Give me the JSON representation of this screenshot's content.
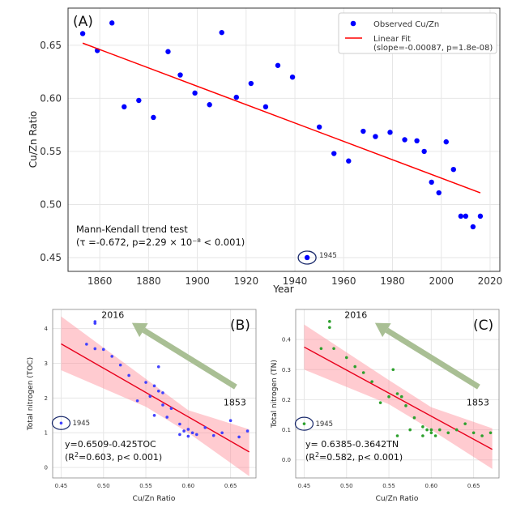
{
  "chart_data": [
    {
      "id": "A",
      "type": "scatter",
      "panel_label": "(A)",
      "xlabel": "Year",
      "ylabel": "Cu/Zn Ratio",
      "xlim": [
        1847,
        2024
      ],
      "ylim": [
        0.437,
        0.685
      ],
      "xticks": [
        "1860",
        "1880",
        "1900",
        "1920",
        "1940",
        "1960",
        "1980",
        "2000",
        "2020"
      ],
      "yticks": [
        "0.45",
        "0.50",
        "0.55",
        "0.60",
        "0.65"
      ],
      "grid": true,
      "legend": {
        "position": "top-right",
        "scatter": "Observed Cu/Zn",
        "line1": "Linear Fit",
        "line2": "(slope=-0.00087, p=1.8e-08)"
      },
      "colors": {
        "points": "#0000ff",
        "fit": "#ff0000"
      },
      "points": {
        "x": [
          1853,
          1859,
          1865,
          1870,
          1876,
          1882,
          1888,
          1893,
          1899,
          1905,
          1910,
          1916,
          1922,
          1928,
          1933,
          1939,
          1945,
          1950,
          1956,
          1962,
          1968,
          1973,
          1979,
          1985,
          1990,
          1993,
          1996,
          1999,
          2002,
          2005,
          2008,
          2010,
          2013,
          2016
        ],
        "y": [
          0.661,
          0.645,
          0.671,
          0.592,
          0.598,
          0.582,
          0.644,
          0.622,
          0.605,
          0.594,
          0.662,
          0.601,
          0.614,
          0.592,
          0.631,
          0.62,
          0.45,
          0.573,
          0.548,
          0.541,
          0.569,
          0.564,
          0.568,
          0.561,
          0.56,
          0.55,
          0.521,
          0.511,
          0.559,
          0.533,
          0.489,
          0.489,
          0.479,
          0.489
        ]
      },
      "fit": {
        "x": [
          1853,
          2016
        ],
        "y": [
          0.652,
          0.511
        ]
      },
      "outlier": {
        "label": "1945",
        "x": 1945,
        "y": 0.45
      },
      "stats_title": "Mann-Kendall trend test",
      "stats_line": "(τ =-0.672, p=2.29 × 10⁻⁸ < 0.001)"
    },
    {
      "id": "B",
      "type": "scatter",
      "panel_label": "(B)",
      "xlabel": "Cu/Zn Ratio",
      "ylabel": "Total nitrogen (TOC)",
      "xlim": [
        0.44,
        0.68
      ],
      "ylim": [
        -0.3,
        4.55
      ],
      "xticks": [
        "0.45",
        "0.50",
        "0.55",
        "0.60",
        "0.65"
      ],
      "yticks": [
        "0",
        "1",
        "2",
        "3",
        "4"
      ],
      "grid": true,
      "colors": {
        "points": "#4040ff",
        "fit": "#e8001c",
        "band": "#ff8c96",
        "arrow": "#a9bf94"
      },
      "points": {
        "x": [
          0.45,
          0.48,
          0.49,
          0.49,
          0.49,
          0.5,
          0.51,
          0.52,
          0.53,
          0.54,
          0.55,
          0.555,
          0.56,
          0.56,
          0.565,
          0.565,
          0.57,
          0.57,
          0.575,
          0.58,
          0.59,
          0.59,
          0.595,
          0.6,
          0.6,
          0.605,
          0.61,
          0.62,
          0.63,
          0.64,
          0.65,
          0.66,
          0.67
        ],
        "y": [
          1.28,
          3.55,
          4.2,
          4.15,
          3.42,
          3.4,
          3.2,
          2.95,
          2.65,
          1.92,
          2.45,
          2.05,
          2.35,
          1.5,
          2.2,
          2.9,
          2.15,
          1.8,
          1.45,
          1.7,
          0.95,
          1.25,
          1.05,
          0.9,
          1.1,
          1.0,
          0.95,
          1.15,
          0.92,
          1.0,
          1.35,
          0.88,
          1.05
        ]
      },
      "fit": {
        "x": [
          0.45,
          0.672
        ],
        "y": [
          3.56,
          0.45
        ]
      },
      "band_upper": {
        "x": [
          0.45,
          0.55,
          0.6,
          0.672
        ],
        "y": [
          4.35,
          2.55,
          1.65,
          1.1
        ]
      },
      "band_lower": {
        "x": [
          0.45,
          0.55,
          0.6,
          0.672
        ],
        "y": [
          2.8,
          1.75,
          1.0,
          -0.25
        ]
      },
      "arrow_labels": {
        "start": "1853",
        "end": "2016"
      },
      "outlier_label": "1945",
      "equation": "y=0.6509-0.425TOC",
      "r2_text": "=0.603, p< 0.001)"
    },
    {
      "id": "C",
      "type": "scatter",
      "panel_label": "(C)",
      "xlabel": "Cu/Zn Ratio",
      "ylabel": "Total nitrogen (TN)",
      "xlim": [
        0.44,
        0.68
      ],
      "ylim": [
        -0.06,
        0.5
      ],
      "xticks": [
        "0.45",
        "0.50",
        "0.55",
        "0.60",
        "0.65"
      ],
      "yticks": [
        "0.0",
        "0.1",
        "0.2",
        "0.3",
        "0.4"
      ],
      "grid": true,
      "colors": {
        "points": "#2ca02c",
        "fit": "#e8001c",
        "band": "#ff8c96",
        "arrow": "#a9bf94"
      },
      "points": {
        "x": [
          0.45,
          0.47,
          0.48,
          0.48,
          0.485,
          0.5,
          0.51,
          0.52,
          0.53,
          0.54,
          0.55,
          0.555,
          0.56,
          0.56,
          0.565,
          0.57,
          0.575,
          0.58,
          0.59,
          0.59,
          0.595,
          0.6,
          0.6,
          0.605,
          0.61,
          0.62,
          0.63,
          0.64,
          0.65,
          0.66,
          0.67
        ],
        "y": [
          0.12,
          0.37,
          0.46,
          0.44,
          0.37,
          0.34,
          0.31,
          0.29,
          0.26,
          0.19,
          0.21,
          0.3,
          0.22,
          0.08,
          0.21,
          0.18,
          0.1,
          0.14,
          0.08,
          0.11,
          0.1,
          0.09,
          0.1,
          0.08,
          0.1,
          0.09,
          0.1,
          0.12,
          0.09,
          0.08,
          0.09
        ]
      },
      "fit": {
        "x": [
          0.45,
          0.672
        ],
        "y": [
          0.375,
          0.035
        ]
      },
      "band_upper": {
        "x": [
          0.45,
          0.55,
          0.6,
          0.672
        ],
        "y": [
          0.45,
          0.265,
          0.175,
          0.105
        ]
      },
      "band_lower": {
        "x": [
          0.45,
          0.55,
          0.6,
          0.672
        ],
        "y": [
          0.3,
          0.185,
          0.1,
          -0.03
        ]
      },
      "arrow_labels": {
        "start": "1853",
        "end": "2016"
      },
      "outlier_label": "1945",
      "equation": "y= 0.6385-0.3642TN",
      "r2_text": "=0.582, p< 0.001)"
    }
  ]
}
